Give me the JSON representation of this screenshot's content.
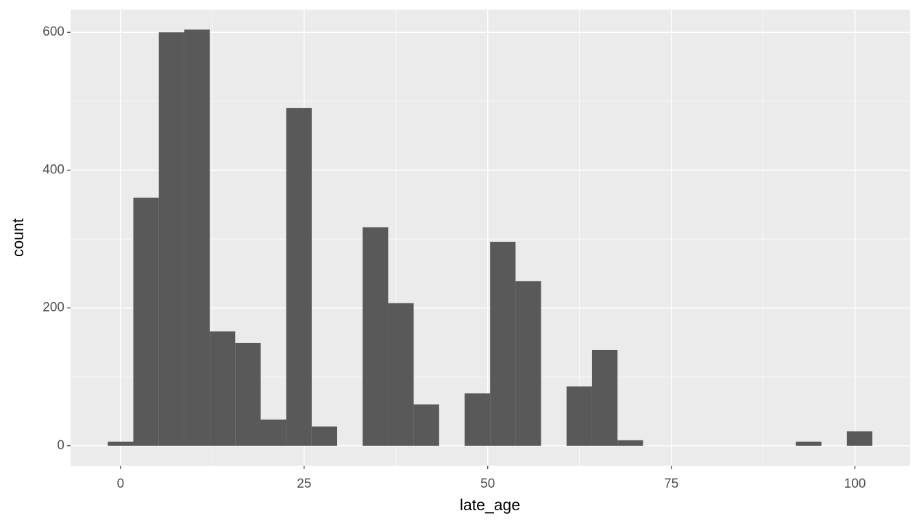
{
  "chart_data": {
    "type": "histogram",
    "x_label": "late_age",
    "y_label": "count",
    "bins": [
      -1.74,
      1.74,
      5.21,
      8.68,
      12.15,
      15.62,
      19.09,
      22.56,
      26.03,
      29.5,
      32.97,
      36.44,
      39.91,
      43.38,
      46.85,
      50.32,
      53.79,
      57.26,
      60.73,
      64.2,
      67.67,
      71.14,
      74.61,
      78.08,
      81.55,
      85.02,
      88.49,
      91.96,
      95.43,
      98.9,
      102.37
    ],
    "values": [
      6,
      360,
      600,
      604,
      166,
      149,
      38,
      490,
      28,
      0,
      317,
      207,
      60,
      0,
      76,
      296,
      239,
      0,
      86,
      139,
      8,
      0,
      0,
      0,
      0,
      0,
      0,
      6,
      0,
      21
    ],
    "color": "#595959",
    "xlim": [
      -6.8,
      107.5
    ],
    "xticks": [
      0,
      25,
      50,
      75,
      100
    ],
    "ylim": [
      -29,
      633
    ],
    "yticks": [
      0,
      200,
      400,
      600
    ],
    "grid": true
  }
}
